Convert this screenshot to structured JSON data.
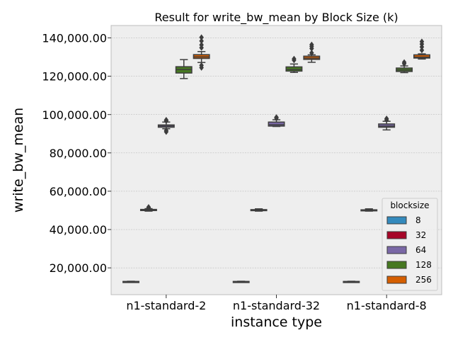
{
  "chart_data": {
    "type": "box",
    "title": "Result for write_bw_mean by Block Size (k)",
    "xlabel": "instance type",
    "ylabel": "write_bw_mean",
    "categories": [
      "n1-standard-2",
      "n1-standard-32",
      "n1-standard-8"
    ],
    "ylim": [
      6000,
      146500
    ],
    "yticks": [
      20000,
      40000,
      60000,
      80000,
      100000,
      120000,
      140000
    ],
    "ytick_labels": [
      "20,000.00",
      "40,000.00",
      "60,000.00",
      "80,000.00",
      "100,000.00",
      "120,000.00",
      "140,000.00"
    ],
    "grid": true,
    "legend": {
      "title": "blocksize",
      "placement": "lower-right"
    },
    "series": [
      {
        "name": "8",
        "color": "#348ABD",
        "boxes": [
          {
            "min": 12600,
            "q1": 12700,
            "median": 12800,
            "q3": 12900,
            "max": 13000,
            "outliers": []
          },
          {
            "min": 12600,
            "q1": 12700,
            "median": 12800,
            "q3": 12900,
            "max": 13000,
            "outliers": []
          },
          {
            "min": 12600,
            "q1": 12700,
            "median": 12800,
            "q3": 12900,
            "max": 13000,
            "outliers": []
          }
        ]
      },
      {
        "name": "32",
        "color": "#A60628",
        "boxes": [
          {
            "min": 49600,
            "q1": 49900,
            "median": 50200,
            "q3": 50500,
            "max": 50900,
            "outliers": [
              51700,
              51400
            ]
          },
          {
            "min": 49600,
            "q1": 49900,
            "median": 50200,
            "q3": 50400,
            "max": 50800,
            "outliers": []
          },
          {
            "min": 49600,
            "q1": 49800,
            "median": 50100,
            "q3": 50300,
            "max": 50800,
            "outliers": []
          }
        ]
      },
      {
        "name": "64",
        "color": "#7A68A6",
        "boxes": [
          {
            "min": 92600,
            "q1": 93400,
            "median": 94000,
            "q3": 94600,
            "max": 96100,
            "outliers": [
              97200,
              96700,
              91700,
              91000
            ]
          },
          {
            "min": 93800,
            "q1": 94000,
            "median": 94700,
            "q3": 96100,
            "max": 97300,
            "outliers": [
              98600,
              98100
            ]
          },
          {
            "min": 92000,
            "q1": 93400,
            "median": 94000,
            "q3": 95100,
            "max": 96500,
            "outliers": [
              97900,
              97200
            ]
          }
        ]
      },
      {
        "name": "128",
        "color": "#467821",
        "boxes": [
          {
            "min": 118800,
            "q1": 121700,
            "median": 123500,
            "q3": 125000,
            "max": 128700,
            "outliers": []
          },
          {
            "min": 122000,
            "q1": 122700,
            "median": 123500,
            "q3": 124900,
            "max": 126400,
            "outliers": [
              128400,
              129100
            ]
          },
          {
            "min": 121900,
            "q1": 122500,
            "median": 123300,
            "q3": 124300,
            "max": 125400,
            "outliers": [
              126600,
              127300
            ]
          }
        ]
      },
      {
        "name": "256",
        "color": "#D55E00",
        "boxes": [
          {
            "min": 127200,
            "q1": 129300,
            "median": 130100,
            "q3": 131300,
            "max": 132900,
            "outliers": [
              134900,
              136400,
              138400,
              140300,
              124500,
              125700
            ]
          },
          {
            "min": 127300,
            "q1": 128800,
            "median": 129500,
            "q3": 130500,
            "max": 131200,
            "outliers": [
              132200,
              134500,
              135600,
              136500
            ]
          },
          {
            "min": 129000,
            "q1": 129500,
            "median": 130000,
            "q3": 131200,
            "max": 131700,
            "outliers": [
              133600,
              135300,
              136800,
              138100
            ]
          }
        ]
      }
    ]
  }
}
